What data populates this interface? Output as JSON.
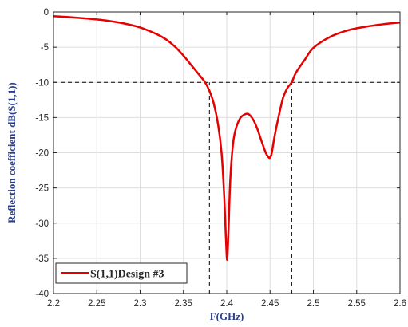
{
  "chart_data": {
    "type": "line",
    "xlabel": "F(GHz)",
    "ylabel": "Reflection coefficient dB(S(1,1))",
    "xlim": [
      2.2,
      2.6
    ],
    "ylim": [
      -40,
      0
    ],
    "x_ticks": [
      2.2,
      2.25,
      2.3,
      2.35,
      2.4,
      2.45,
      2.5,
      2.55,
      2.6
    ],
    "x_tick_labels": [
      "2.2",
      "2.25",
      "2.3",
      "2.35",
      "2.4",
      "2.45",
      "2.5",
      "2.55",
      "2.6"
    ],
    "y_ticks": [
      0,
      -5,
      -10,
      -15,
      -20,
      -25,
      -30,
      -35,
      -40
    ],
    "y_tick_labels": [
      "0",
      "-5",
      "-10",
      "-15",
      "-20",
      "-25",
      "-30",
      "-35",
      "-40"
    ],
    "grid": true,
    "legend_position": "bottom-left",
    "series": [
      {
        "name": "S(1,1)Design #3",
        "color": "#e60000",
        "x": [
          2.2,
          2.22,
          2.24,
          2.26,
          2.28,
          2.3,
          2.32,
          2.33,
          2.34,
          2.35,
          2.36,
          2.37,
          2.375,
          2.38,
          2.385,
          2.39,
          2.394,
          2.397,
          2.399,
          2.4005,
          2.402,
          2.404,
          2.407,
          2.41,
          2.415,
          2.42,
          2.425,
          2.43,
          2.435,
          2.44,
          2.445,
          2.448,
          2.45,
          2.452,
          2.455,
          2.46,
          2.465,
          2.47,
          2.475,
          2.48,
          2.49,
          2.5,
          2.52,
          2.54,
          2.56,
          2.58,
          2.6
        ],
        "y": [
          -0.6,
          -0.75,
          -0.95,
          -1.2,
          -1.6,
          -2.2,
          -3.2,
          -3.9,
          -4.9,
          -6.2,
          -7.7,
          -9.2,
          -10.0,
          -11.2,
          -13.0,
          -16.0,
          -20.0,
          -26.0,
          -32.0,
          -35.2,
          -31.0,
          -24.0,
          -19.0,
          -16.8,
          -15.2,
          -14.6,
          -14.5,
          -15.2,
          -16.5,
          -18.3,
          -20.0,
          -20.6,
          -20.7,
          -20.0,
          -17.8,
          -14.8,
          -12.2,
          -10.8,
          -10.0,
          -8.6,
          -6.8,
          -5.1,
          -3.5,
          -2.6,
          -2.1,
          -1.75,
          -1.5
        ]
      }
    ],
    "reference_lines": [
      {
        "type": "horizontal",
        "y": -10,
        "x_from": 2.2,
        "x_to": 2.6,
        "style": "dashed",
        "color": "#000000"
      },
      {
        "type": "vertical",
        "x": 2.38,
        "y_from": -40,
        "y_to": -10,
        "style": "dashed",
        "color": "#000000"
      },
      {
        "type": "vertical",
        "x": 2.475,
        "y_from": -40,
        "y_to": -10,
        "style": "dashed",
        "color": "#000000"
      }
    ]
  }
}
